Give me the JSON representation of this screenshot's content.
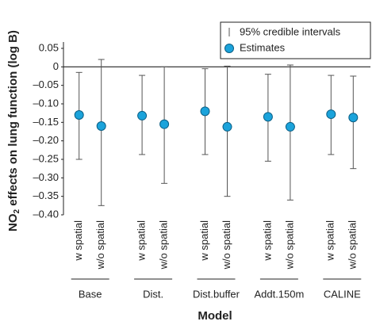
{
  "chart_data": {
    "type": "interval",
    "ylabel": {
      "main": "NO",
      "sub": "2",
      "rest": " effects on lung function (log B)"
    },
    "xlabel": "Model",
    "categories": [
      "w spatial",
      "w/o spatial",
      "w spatial",
      "w/o spatial",
      "w spatial",
      "w/o spatial",
      "w spatial",
      "w/o spatial",
      "w spatial",
      "w/o spatial"
    ],
    "groups": [
      "Base",
      "Dist.",
      "Dist.buffer",
      "Addt.150m",
      "CALINE"
    ],
    "interval_name": "95% credible intervals",
    "interval_color": "#555555",
    "series": [
      {
        "name": "Estimates",
        "color": "#1ba3db",
        "values": [
          -0.13,
          -0.16,
          -0.132,
          -0.155,
          -0.12,
          -0.162,
          -0.135,
          -0.162,
          -0.128,
          -0.137
        ],
        "lower": [
          -0.25,
          -0.375,
          -0.237,
          -0.315,
          -0.237,
          -0.35,
          -0.255,
          -0.36,
          -0.237,
          -0.275
        ],
        "upper": [
          -0.015,
          0.02,
          -0.023,
          0,
          -0.005,
          0.002,
          -0.02,
          0.005,
          -0.023,
          -0.025
        ]
      }
    ],
    "ylim": [
      -0.4,
      0.05
    ],
    "yticks": [
      {
        "value": 0.05,
        "label": "0.05"
      },
      0,
      {
        "value": -0.05,
        "label": "–0.05"
      },
      {
        "value": -0.1,
        "label": "–0.10"
      },
      {
        "value": -0.15,
        "label": "–0.15"
      },
      {
        "value": -0.2,
        "label": "–0.20"
      },
      {
        "value": -0.25,
        "label": "–0.25"
      },
      {
        "value": -0.3,
        "label": "–0.30"
      },
      {
        "value": -0.35,
        "label": "–0.35"
      },
      {
        "value": -0.4,
        "label": "–0.40"
      }
    ],
    "zero_line": true,
    "legend": "top-right"
  }
}
